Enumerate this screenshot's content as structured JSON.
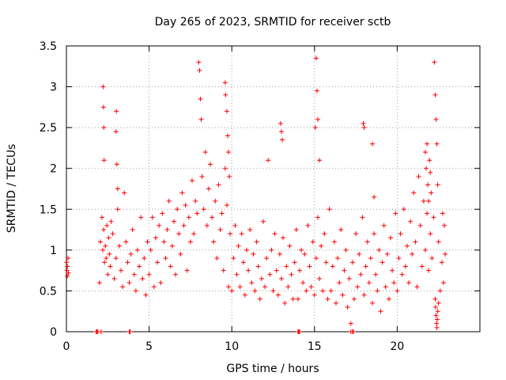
{
  "chart_data": {
    "type": "scatter",
    "title": "Day 265 of 2023, SRMTID for receiver sctb",
    "xlabel": "GPS time / hours",
    "ylabel": "SRMTID / TECUs",
    "xlim": [
      0,
      25
    ],
    "ylim": [
      0,
      3.5
    ],
    "xticks": [
      0,
      5,
      10,
      15,
      20
    ],
    "xtick_labels": [
      "0",
      "5",
      "10",
      "15",
      "20"
    ],
    "yticks": [
      0,
      0.5,
      1,
      1.5,
      2,
      2.5,
      3,
      3.5
    ],
    "ytick_labels": [
      "0",
      "0.5",
      "1",
      "1.5",
      "2",
      "2.5",
      "3",
      "3.5"
    ],
    "grid": true,
    "marker": "plus",
    "color": "#ff0000",
    "series": [
      {
        "name": "SRMTID",
        "x": [
          0.02,
          0.03,
          0.05,
          0.06,
          0.1,
          0.12,
          2.0,
          2.05,
          2.15,
          2.2,
          2.25,
          2.3,
          2.35,
          2.4,
          2.45,
          2.5,
          2.55,
          2.6,
          2.65,
          2.7,
          2.8,
          2.9,
          3.0,
          3.1,
          3.2,
          3.3,
          3.4,
          3.5,
          3.6,
          3.7,
          3.8,
          3.9,
          4.0,
          4.1,
          4.2,
          4.3,
          4.4,
          4.5,
          4.6,
          4.7,
          4.8,
          4.9,
          2.22,
          2.24,
          2.26,
          2.28,
          3.0,
          3.02,
          3.05,
          3.1,
          5.0,
          5.1,
          5.2,
          5.3,
          5.4,
          5.5,
          5.6,
          5.7,
          5.8,
          5.9,
          6.0,
          6.1,
          6.2,
          6.3,
          6.4,
          6.5,
          6.6,
          6.7,
          6.8,
          6.9,
          7.0,
          7.1,
          7.2,
          7.3,
          7.4,
          7.5,
          7.6,
          7.7,
          7.8,
          7.9,
          8.0,
          8.05,
          8.1,
          8.15,
          8.2,
          8.3,
          8.4,
          8.5,
          8.6,
          8.7,
          8.8,
          8.9,
          9.0,
          9.1,
          9.2,
          9.3,
          9.4,
          9.5,
          9.6,
          9.7,
          9.8,
          9.9,
          9.6,
          9.62,
          9.7,
          9.75,
          9.8,
          9.85,
          10.0,
          10.1,
          10.2,
          10.3,
          10.4,
          10.5,
          10.6,
          10.7,
          10.8,
          10.9,
          11.0,
          11.1,
          11.2,
          11.3,
          11.4,
          11.5,
          11.6,
          11.7,
          11.8,
          11.9,
          12.0,
          12.1,
          12.2,
          12.3,
          12.4,
          12.5,
          12.6,
          12.7,
          12.8,
          12.9,
          13.0,
          13.1,
          13.2,
          13.3,
          13.4,
          13.5,
          13.6,
          13.7,
          13.8,
          13.9,
          12.95,
          13.0,
          13.05,
          14.0,
          14.1,
          14.2,
          14.3,
          14.4,
          14.5,
          14.6,
          14.7,
          14.8,
          14.9,
          15.0,
          15.1,
          15.2,
          15.3,
          15.4,
          15.5,
          15.6,
          15.7,
          15.8,
          15.9,
          15.05,
          15.1,
          15.15,
          15.2,
          15.3,
          16.0,
          16.1,
          16.2,
          16.3,
          16.4,
          16.5,
          16.6,
          16.7,
          16.8,
          16.9,
          17.0,
          17.1,
          17.2,
          17.3,
          17.4,
          17.5,
          17.6,
          17.7,
          17.8,
          17.9,
          17.95,
          18.0,
          18.5,
          18.6,
          18.0,
          18.1,
          18.2,
          18.3,
          18.4,
          18.5,
          18.6,
          18.7,
          18.8,
          18.9,
          19.0,
          19.1,
          19.2,
          19.3,
          19.4,
          19.5,
          19.6,
          19.7,
          19.8,
          19.9,
          20.0,
          20.1,
          20.2,
          20.3,
          20.4,
          20.5,
          20.6,
          20.7,
          20.8,
          20.9,
          21.0,
          21.1,
          21.2,
          21.3,
          21.4,
          21.5,
          21.6,
          21.7,
          21.8,
          21.9,
          21.7,
          21.75,
          21.8,
          21.85,
          21.9,
          21.95,
          22.0,
          22.05,
          22.0,
          22.1,
          22.2,
          22.25,
          22.3,
          22.35,
          22.4,
          22.45,
          22.5,
          22.6,
          22.7,
          22.75,
          22.8,
          22.85,
          22.9,
          22.3,
          22.32,
          22.35,
          22.38,
          22.4,
          22.42,
          22.45,
          22.5,
          1.8,
          1.85,
          1.9,
          2.1,
          3.8,
          3.85,
          14.0,
          14.05,
          14.1,
          17.2,
          17.3,
          17.35
        ],
        "y": [
          0.85,
          0.75,
          0.68,
          0.8,
          0.9,
          0.72,
          0.6,
          1.1,
          1.4,
          1.0,
          1.25,
          0.85,
          1.05,
          0.9,
          1.3,
          0.7,
          1.15,
          0.95,
          0.8,
          1.35,
          1.2,
          0.65,
          0.9,
          1.5,
          1.05,
          0.75,
          0.55,
          1.7,
          1.1,
          0.85,
          0.6,
          0.95,
          1.25,
          0.7,
          0.5,
          1.0,
          0.8,
          1.4,
          0.65,
          0.9,
          0.45,
          1.1,
          3.0,
          2.75,
          2.5,
          2.1,
          2.45,
          2.7,
          2.05,
          1.75,
          0.7,
          1.0,
          1.4,
          0.55,
          1.15,
          0.85,
          1.3,
          0.6,
          1.45,
          1.1,
          0.9,
          1.25,
          1.6,
          0.8,
          1.05,
          1.35,
          0.7,
          1.5,
          1.2,
          0.95,
          1.7,
          1.3,
          1.55,
          0.75,
          1.4,
          1.1,
          1.85,
          1.2,
          1.6,
          1.45,
          3.3,
          3.2,
          2.85,
          2.6,
          1.9,
          1.5,
          2.2,
          1.3,
          1.75,
          2.05,
          1.4,
          1.1,
          1.6,
          0.9,
          1.8,
          1.25,
          1.45,
          0.75,
          2.0,
          1.55,
          0.55,
          1.2,
          3.05,
          2.9,
          2.7,
          2.4,
          2.2,
          1.9,
          0.5,
          0.9,
          1.3,
          0.7,
          1.05,
          0.55,
          1.2,
          0.85,
          0.45,
          1.0,
          0.75,
          1.25,
          0.6,
          0.95,
          0.5,
          1.1,
          0.8,
          0.4,
          0.65,
          1.35,
          0.55,
          0.9,
          2.1,
          0.7,
          1.0,
          0.5,
          1.2,
          0.75,
          0.45,
          0.95,
          0.65,
          1.15,
          0.35,
          0.8,
          0.55,
          1.05,
          0.7,
          0.4,
          0.85,
          1.25,
          2.55,
          2.45,
          2.35,
          0.4,
          0.75,
          1.0,
          0.6,
          0.95,
          0.5,
          1.3,
          0.8,
          0.55,
          1.1,
          0.45,
          0.9,
          1.4,
          0.65,
          1.05,
          0.5,
          1.2,
          0.85,
          0.4,
          1.5,
          2.5,
          3.35,
          2.95,
          2.6,
          2.1,
          0.5,
          0.8,
          1.1,
          0.35,
          0.9,
          0.6,
          1.25,
          0.45,
          0.75,
          1.0,
          0.3,
          0.65,
          0.1,
          0.85,
          0.4,
          1.2,
          0.55,
          0.95,
          0.7,
          1.4,
          2.55,
          2.5,
          2.3,
          1.65,
          0.45,
          0.8,
          1.1,
          0.6,
          0.9,
          0.35,
          1.2,
          0.7,
          0.5,
          1.0,
          0.25,
          0.85,
          1.3,
          0.55,
          0.95,
          0.4,
          1.15,
          0.75,
          0.6,
          1.45,
          0.5,
          0.9,
          1.2,
          0.7,
          1.5,
          0.8,
          1.05,
          0.6,
          1.35,
          0.95,
          1.7,
          1.1,
          0.55,
          1.9,
          1.3,
          0.8,
          1.6,
          1.0,
          1.45,
          0.75,
          2.2,
          2.0,
          2.3,
          1.8,
          1.6,
          2.1,
          1.95,
          1.7,
          1.2,
          0.9,
          1.4,
          3.3,
          2.9,
          2.6,
          2.3,
          1.8,
          1.1,
          0.5,
          0.85,
          1.45,
          0.6,
          1.3,
          0.95,
          0.4,
          0.3,
          0.2,
          0.1,
          0.05,
          0.15,
          0.25,
          0.35,
          0.0,
          0.0,
          0.0,
          0.0,
          0.0,
          0.0,
          0.0,
          0.0,
          0.0,
          0.0,
          0.0,
          0.0
        ]
      }
    ]
  }
}
